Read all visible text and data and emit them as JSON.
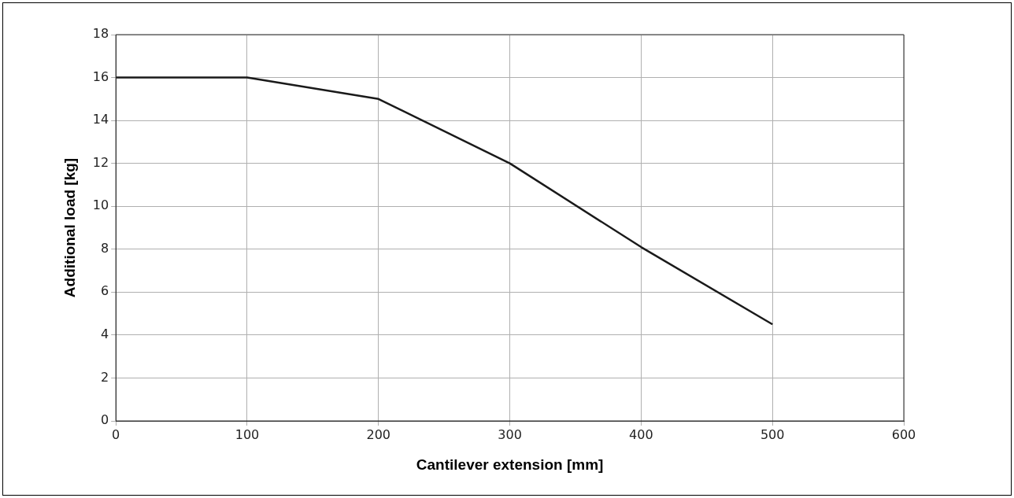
{
  "chart_data": {
    "type": "line",
    "xlabel": "Cantilever extension [mm]",
    "ylabel": "Additional load [kg]",
    "x": [
      0,
      100,
      200,
      300,
      400,
      500
    ],
    "series": [
      {
        "color": "#1a1a1a",
        "values": [
          16,
          16,
          15,
          12,
          8.1,
          4.5
        ]
      }
    ],
    "xlim": [
      0,
      600
    ],
    "xticks": [
      0,
      100,
      200,
      300,
      400,
      500,
      600
    ],
    "ylim": [
      0,
      18
    ],
    "yticks": [
      0,
      2,
      4,
      6,
      8,
      10,
      12,
      14,
      16,
      18
    ],
    "grid": true,
    "marker": "none",
    "line_style": "solid"
  }
}
